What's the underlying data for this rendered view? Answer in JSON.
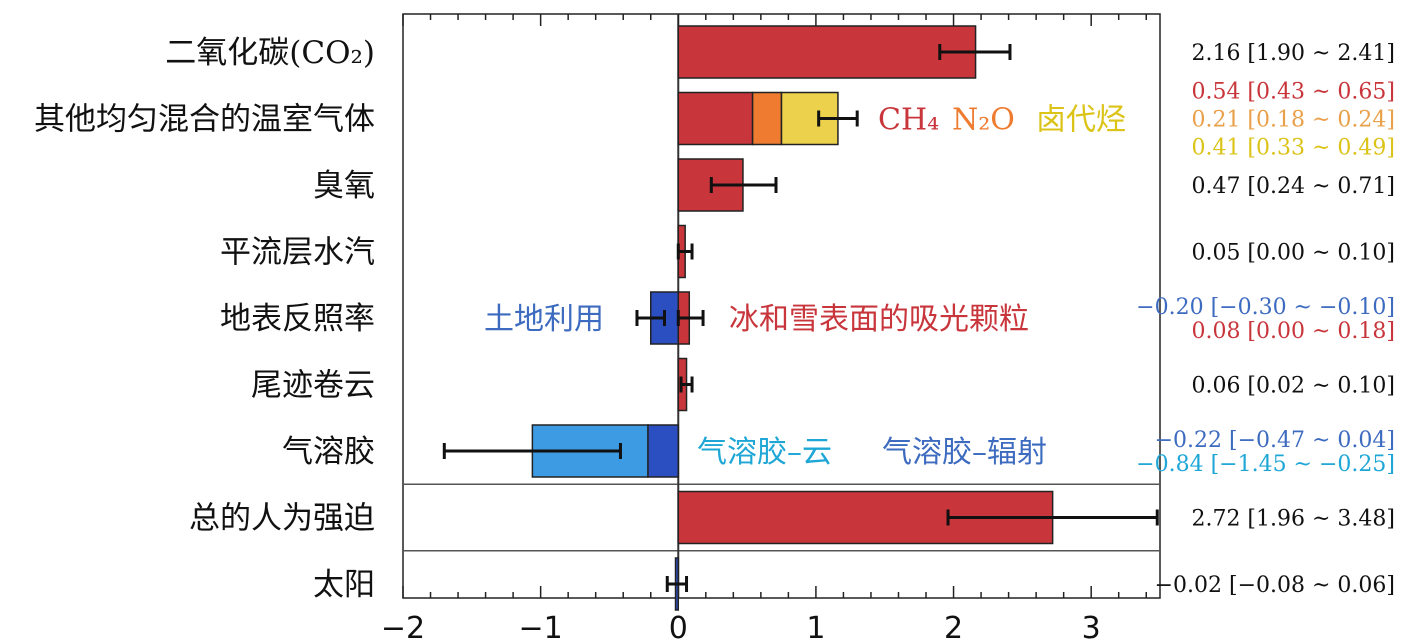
{
  "chart_data": {
    "type": "bar",
    "orientation": "horizontal",
    "xlim": [
      -2,
      3.5
    ],
    "x_ticks": [
      "−2",
      "−1",
      "0",
      "1",
      "2",
      "3"
    ],
    "grid": false,
    "colors": {
      "red": "#c8363c",
      "orange": "#ee7b30",
      "yellow": "#ecd14d",
      "blue": "#2b4fc0",
      "lightblue": "#3c9be3",
      "text_blue": "#3d6bbf",
      "text_cyan": "#1ea7d6",
      "text_orange": "#e9a04a",
      "text_yellow": "#dcc318"
    },
    "categories": [
      {
        "label": "二氧化碳(CO₂)",
        "segments": [
          {
            "start": 0,
            "end": 2.16,
            "color": "red"
          }
        ],
        "error_bars": [
          {
            "center": 2.16,
            "low": 1.9,
            "high": 2.41
          }
        ],
        "value_texts": [
          {
            "text": "2.16 [1.90 ~ 2.41]",
            "color": "#111111"
          }
        ]
      },
      {
        "label": "其他均匀混合的温室气体",
        "segments": [
          {
            "start": 0,
            "end": 0.54,
            "color": "red",
            "name": "CH₄"
          },
          {
            "start": 0.54,
            "end": 0.75,
            "color": "orange",
            "name": "N₂O"
          },
          {
            "start": 0.75,
            "end": 1.16,
            "color": "yellow",
            "name": "卤代烃"
          }
        ],
        "error_bars": [
          {
            "center": 1.16,
            "low": 1.02,
            "high": 1.3
          }
        ],
        "value_texts": [
          {
            "text": "0.54 [0.43 ~ 0.65]",
            "color": "#c8363c"
          },
          {
            "text": "0.21 [0.18 ~ 0.24]",
            "color": "#e9a04a"
          },
          {
            "text": "0.41 [0.33 ~ 0.49]",
            "color": "#dcc318"
          }
        ],
        "inline_labels": [
          {
            "text": "CH₄",
            "color": "#c8363c"
          },
          {
            "text": "N₂O",
            "color": "#ee7b30"
          },
          {
            "text": "卤代烃",
            "color": "#dcc318"
          }
        ]
      },
      {
        "label": "臭氧",
        "segments": [
          {
            "start": 0,
            "end": 0.47,
            "color": "red"
          }
        ],
        "error_bars": [
          {
            "center": 0.47,
            "low": 0.24,
            "high": 0.71
          }
        ],
        "value_texts": [
          {
            "text": "0.47 [0.24 ~ 0.71]",
            "color": "#111111"
          }
        ]
      },
      {
        "label": "平流层水汽",
        "segments": [
          {
            "start": 0,
            "end": 0.05,
            "color": "red"
          }
        ],
        "error_bars": [
          {
            "center": 0.05,
            "low": 0.0,
            "high": 0.1
          }
        ],
        "value_texts": [
          {
            "text": "0.05 [0.00 ~ 0.10]",
            "color": "#111111"
          }
        ]
      },
      {
        "label": "地表反照率",
        "segments": [
          {
            "start": -0.2,
            "end": 0,
            "color": "blue",
            "name": "土地利用"
          },
          {
            "start": 0,
            "end": 0.08,
            "color": "red",
            "name": "冰和雪表面的吸光颗粒"
          }
        ],
        "error_bars": [
          {
            "center": -0.2,
            "low": -0.3,
            "high": -0.1
          },
          {
            "center": 0.08,
            "low": 0.0,
            "high": 0.18
          }
        ],
        "value_texts": [
          {
            "text": "−0.20 [−0.30 ~ −0.10]",
            "color": "#3d6bbf"
          },
          {
            "text": "0.08 [0.00 ~ 0.18]",
            "color": "#c8363c"
          }
        ],
        "inline_labels": [
          {
            "text": "土地利用",
            "color": "#3d6bbf",
            "side": "left"
          },
          {
            "text": "冰和雪表面的吸光颗粒",
            "color": "#c8363c",
            "side": "right"
          }
        ]
      },
      {
        "label": "尾迹卷云",
        "segments": [
          {
            "start": 0,
            "end": 0.06,
            "color": "red"
          }
        ],
        "error_bars": [
          {
            "center": 0.06,
            "low": 0.02,
            "high": 0.1
          }
        ],
        "value_texts": [
          {
            "text": "0.06 [0.02 ~ 0.10]",
            "color": "#111111"
          }
        ]
      },
      {
        "label": "气溶胶",
        "segments": [
          {
            "start": -1.06,
            "end": -0.22,
            "color": "lightblue",
            "name": "气溶胶–云"
          },
          {
            "start": -0.22,
            "end": 0,
            "color": "blue",
            "name": "气溶胶–辐射"
          }
        ],
        "error_bars": [
          {
            "center": -1.06,
            "low": -1.7,
            "high": -0.42
          }
        ],
        "value_texts": [
          {
            "text": "−0.22 [−0.47 ~ 0.04]",
            "color": "#3d6bbf"
          },
          {
            "text": "−0.84 [−1.45 ~ −0.25]",
            "color": "#1ea7d6"
          }
        ],
        "inline_labels": [
          {
            "text": "气溶胶–云",
            "color": "#1ea7d6"
          },
          {
            "text": "气溶胶–辐射",
            "color": "#3d6bbf"
          }
        ]
      },
      {
        "label": "总的人为强迫",
        "segments": [
          {
            "start": 0,
            "end": 2.72,
            "color": "red"
          }
        ],
        "error_bars": [
          {
            "center": 2.72,
            "low": 1.96,
            "high": 3.48
          }
        ],
        "value_texts": [
          {
            "text": "2.72 [1.96 ~ 3.48]",
            "color": "#111111"
          }
        ]
      },
      {
        "label": "太阳",
        "segments": [
          {
            "start": -0.02,
            "end": 0,
            "color": "blue"
          }
        ],
        "error_bars": [
          {
            "center": -0.02,
            "low": -0.08,
            "high": 0.06
          }
        ],
        "value_texts": [
          {
            "text": "−0.02 [−0.08 ~ 0.06]",
            "color": "#111111"
          }
        ]
      }
    ]
  }
}
